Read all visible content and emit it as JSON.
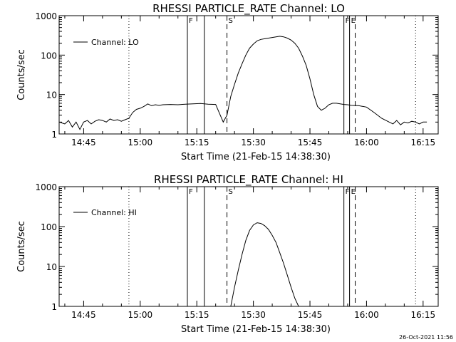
{
  "footer": {
    "timestamp": "26-Oct-2021 11:56"
  },
  "chart_data": [
    {
      "type": "line",
      "title": "RHESSI PARTICLE_RATE Channel: LO",
      "xlabel": "Start Time (21-Feb-15 14:38:30)",
      "ylabel": "Counts/sec",
      "yscale": "log",
      "ylim": [
        1,
        1000
      ],
      "xlim": [
        "14:38:30",
        "16:19:00"
      ],
      "x_ticks": [
        "14:45",
        "15:00",
        "15:15",
        "15:30",
        "15:45",
        "16:00",
        "16:15"
      ],
      "y_ticks": [
        "1",
        "10",
        "100",
        "1000"
      ],
      "legend": {
        "label": "Channel: LO",
        "placement": "top-left"
      },
      "markers": [
        {
          "label": "F",
          "time": "15:12.5",
          "style": "solid"
        },
        {
          "label": "",
          "time": "15:17",
          "style": "solid"
        },
        {
          "label": "S",
          "time": "15:23",
          "style": "dashed"
        },
        {
          "label": "",
          "time": "15:57",
          "style": "dashed"
        },
        {
          "label": "F",
          "time": "15:54",
          "style": "solid"
        },
        {
          "label": "E",
          "time": "15:55.5",
          "style": "solid"
        },
        {
          "label": "",
          "time": "14:57",
          "style": "dotted"
        },
        {
          "label": "",
          "time": "16:13",
          "style": "dotted"
        }
      ],
      "series": [
        {
          "x": [
            "14:38:30",
            "14:40",
            "14:41",
            "14:42",
            "14:43",
            "14:44",
            "14:45",
            "14:46",
            "14:47",
            "14:48",
            "14:49",
            "14:50",
            "14:51",
            "14:52",
            "14:53",
            "14:54",
            "14:55",
            "14:56",
            "14:57",
            "14:58",
            "14:59",
            "15:00",
            "15:01",
            "15:02",
            "15:03",
            "15:04",
            "15:05",
            "15:06",
            "15:08",
            "15:10",
            "15:12",
            "15:14",
            "15:16",
            "15:18",
            "15:20",
            "15:22",
            "15:23",
            "15:24",
            "15:25",
            "15:26",
            "15:27",
            "15:28",
            "15:29",
            "15:30",
            "15:31",
            "15:32",
            "15:33",
            "15:34",
            "15:35",
            "15:36",
            "15:37",
            "15:38",
            "15:39",
            "15:40",
            "15:41",
            "15:42",
            "15:43",
            "15:44",
            "15:45",
            "15:46",
            "15:47",
            "15:48",
            "15:49",
            "15:50",
            "15:51",
            "15:52",
            "15:53",
            "15:54",
            "15:55",
            "15:56",
            "15:58",
            "16:00",
            "16:02",
            "16:04",
            "16:06",
            "16:07",
            "16:08",
            "16:09",
            "16:10",
            "16:11",
            "16:12",
            "16:13",
            "16:14",
            "16:15",
            "16:16"
          ],
          "values": [
            2,
            1.8,
            2.2,
            1.5,
            2,
            1.3,
            2,
            2.2,
            1.8,
            2.1,
            2.3,
            2.2,
            2,
            2.4,
            2.2,
            2.3,
            2.1,
            2.3,
            2.5,
            3.5,
            4.2,
            4.5,
            5,
            5.8,
            5.2,
            5.5,
            5.3,
            5.5,
            5.6,
            5.5,
            5.7,
            5.8,
            5.9,
            5.7,
            5.6,
            2,
            3,
            9,
            18,
            35,
            60,
            100,
            150,
            190,
            230,
            250,
            260,
            270,
            280,
            290,
            300,
            290,
            270,
            240,
            200,
            150,
            95,
            55,
            25,
            10,
            5,
            4,
            4.5,
            5.5,
            6,
            6,
            5.8,
            5.6,
            5.5,
            5.3,
            5.2,
            4.8,
            3.5,
            2.5,
            2,
            1.8,
            2.2,
            1.7,
            2,
            1.9,
            2.1,
            2,
            1.8,
            2,
            2
          ]
        }
      ]
    },
    {
      "type": "line",
      "title": "RHESSI PARTICLE_RATE Channel: HI",
      "xlabel": "Start Time (21-Feb-15 14:38:30)",
      "ylabel": "Counts/sec",
      "yscale": "log",
      "ylim": [
        1,
        1000
      ],
      "xlim": [
        "14:38:30",
        "16:19:00"
      ],
      "x_ticks": [
        "14:45",
        "15:00",
        "15:15",
        "15:30",
        "15:45",
        "16:00",
        "16:15"
      ],
      "y_ticks": [
        "1",
        "10",
        "100",
        "1000"
      ],
      "legend": {
        "label": "Channel: HI",
        "placement": "top-left"
      },
      "markers": [
        {
          "label": "F",
          "time": "15:12.5",
          "style": "solid"
        },
        {
          "label": "",
          "time": "15:17",
          "style": "solid"
        },
        {
          "label": "S",
          "time": "15:23",
          "style": "dashed"
        },
        {
          "label": "",
          "time": "15:57",
          "style": "dashed"
        },
        {
          "label": "F",
          "time": "15:54",
          "style": "solid"
        },
        {
          "label": "E",
          "time": "15:55.5",
          "style": "solid"
        },
        {
          "label": "",
          "time": "14:57",
          "style": "dotted"
        },
        {
          "label": "",
          "time": "16:13",
          "style": "dotted"
        }
      ],
      "series": [
        {
          "x": [
            "15:24",
            "15:25",
            "15:26",
            "15:27",
            "15:28",
            "15:29",
            "15:30",
            "15:31",
            "15:32",
            "15:33",
            "15:34",
            "15:35",
            "15:36",
            "15:37",
            "15:38",
            "15:39",
            "15:40",
            "15:41",
            "15:42"
          ],
          "values": [
            1,
            3,
            8,
            20,
            45,
            80,
            110,
            125,
            120,
            105,
            85,
            60,
            40,
            22,
            12,
            6,
            3,
            1.6,
            1
          ]
        }
      ]
    }
  ]
}
